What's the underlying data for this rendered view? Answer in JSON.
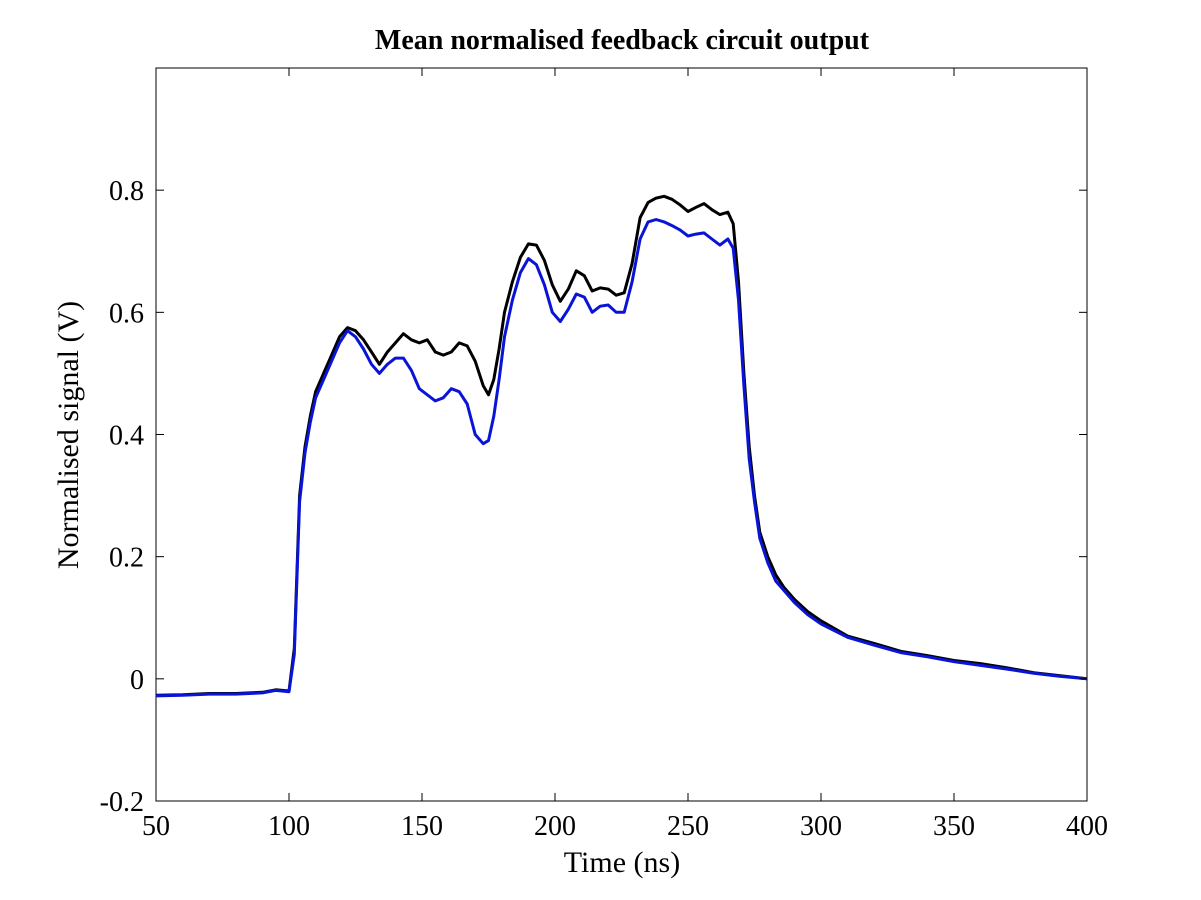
{
  "chart_data": {
    "type": "line",
    "title": "Mean normalised feedback circuit output",
    "xlabel": "Time (ns)",
    "ylabel": "Normalised signal (V)",
    "xlim": [
      50,
      400
    ],
    "ylim": [
      -0.2,
      1.0
    ],
    "x_ticks": [
      50,
      100,
      150,
      200,
      250,
      300,
      350,
      400
    ],
    "x_tick_labels": [
      "50",
      "100",
      "150",
      "200",
      "250",
      "300",
      "350",
      "400"
    ],
    "y_ticks": [
      -0.2,
      0,
      0.2,
      0.4,
      0.6,
      0.8
    ],
    "y_tick_labels": [
      "-0.2",
      "0",
      "0.2",
      "0.4",
      "0.6",
      "0.8"
    ],
    "grid": false,
    "legend": "none",
    "series": [
      {
        "color": "#000000",
        "x": [
          50,
          60,
          70,
          80,
          90,
          95,
          100,
          102,
          104,
          106,
          108,
          110,
          113,
          116,
          119,
          122,
          125,
          128,
          131,
          134,
          137,
          140,
          143,
          146,
          149,
          152,
          155,
          158,
          161,
          164,
          167,
          170,
          173,
          175,
          177,
          179,
          181,
          184,
          187,
          190,
          193,
          196,
          199,
          202,
          205,
          208,
          211,
          214,
          217,
          220,
          223,
          226,
          229,
          232,
          235,
          238,
          241,
          244,
          247,
          250,
          253,
          256,
          259,
          262,
          265,
          267,
          269,
          271,
          273,
          275,
          277,
          280,
          283,
          286,
          290,
          295,
          300,
          310,
          320,
          330,
          340,
          350,
          360,
          370,
          380,
          390,
          400
        ],
        "y": [
          -0.027,
          -0.026,
          -0.024,
          -0.024,
          -0.022,
          -0.018,
          -0.02,
          0.05,
          0.3,
          0.38,
          0.43,
          0.47,
          0.5,
          0.53,
          0.56,
          0.575,
          0.57,
          0.555,
          0.535,
          0.515,
          0.535,
          0.55,
          0.565,
          0.555,
          0.55,
          0.555,
          0.535,
          0.53,
          0.535,
          0.55,
          0.545,
          0.52,
          0.48,
          0.465,
          0.49,
          0.54,
          0.6,
          0.65,
          0.69,
          0.712,
          0.71,
          0.685,
          0.645,
          0.618,
          0.638,
          0.668,
          0.66,
          0.635,
          0.64,
          0.638,
          0.628,
          0.632,
          0.68,
          0.755,
          0.78,
          0.787,
          0.79,
          0.785,
          0.776,
          0.765,
          0.772,
          0.778,
          0.768,
          0.76,
          0.764,
          0.745,
          0.65,
          0.5,
          0.38,
          0.3,
          0.24,
          0.2,
          0.17,
          0.15,
          0.13,
          0.11,
          0.095,
          0.07,
          0.058,
          0.045,
          0.038,
          0.03,
          0.025,
          0.018,
          0.01,
          0.005,
          0.0
        ]
      },
      {
        "color": "#0a14d6",
        "x": [
          50,
          60,
          70,
          80,
          90,
          95,
          100,
          102,
          104,
          106,
          108,
          110,
          113,
          116,
          119,
          122,
          125,
          128,
          131,
          134,
          137,
          140,
          143,
          146,
          149,
          152,
          155,
          158,
          161,
          164,
          167,
          170,
          173,
          175,
          177,
          179,
          181,
          184,
          187,
          190,
          193,
          196,
          199,
          202,
          205,
          208,
          211,
          214,
          217,
          220,
          223,
          226,
          229,
          232,
          235,
          238,
          241,
          244,
          247,
          250,
          253,
          256,
          259,
          262,
          265,
          267,
          269,
          271,
          273,
          275,
          277,
          280,
          283,
          286,
          290,
          295,
          300,
          310,
          320,
          330,
          340,
          350,
          360,
          370,
          380,
          390,
          400
        ],
        "y": [
          -0.028,
          -0.027,
          -0.025,
          -0.025,
          -0.023,
          -0.019,
          -0.021,
          0.04,
          0.29,
          0.37,
          0.42,
          0.46,
          0.49,
          0.52,
          0.55,
          0.57,
          0.56,
          0.54,
          0.515,
          0.5,
          0.515,
          0.525,
          0.525,
          0.505,
          0.475,
          0.465,
          0.455,
          0.46,
          0.475,
          0.47,
          0.45,
          0.4,
          0.385,
          0.39,
          0.43,
          0.49,
          0.56,
          0.62,
          0.665,
          0.688,
          0.678,
          0.645,
          0.6,
          0.585,
          0.605,
          0.63,
          0.625,
          0.6,
          0.61,
          0.612,
          0.6,
          0.6,
          0.65,
          0.72,
          0.748,
          0.752,
          0.748,
          0.742,
          0.735,
          0.725,
          0.728,
          0.73,
          0.72,
          0.71,
          0.72,
          0.705,
          0.62,
          0.48,
          0.36,
          0.29,
          0.23,
          0.19,
          0.16,
          0.145,
          0.125,
          0.105,
          0.09,
          0.068,
          0.055,
          0.043,
          0.036,
          0.028,
          0.022,
          0.016,
          0.009,
          0.004,
          0.0
        ]
      }
    ]
  }
}
